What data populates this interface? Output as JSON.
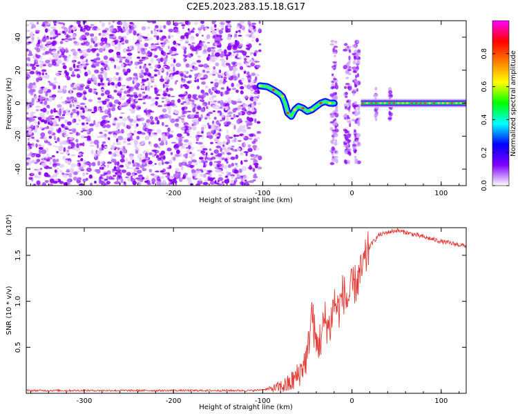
{
  "figure": {
    "title": "C2E5.2023.283.15.18.G17"
  },
  "chart_data": [
    {
      "type": "heatmap",
      "title": "C2E5.2023.283.15.18.G17",
      "xlabel": "Height of straight line (km)",
      "ylabel": "Frequency (Hz)",
      "xlim": [
        -365,
        128
      ],
      "ylim": [
        -50,
        50
      ],
      "x_ticks": [
        -300,
        -200,
        -100,
        0,
        100
      ],
      "y_ticks": [
        -40,
        -20,
        0,
        20,
        40
      ],
      "colorbar": {
        "label": "Normalized spectral amplitude",
        "range": [
          0,
          1
        ],
        "ticks": [
          0.0,
          0.2,
          0.4,
          0.6,
          0.8
        ],
        "tick_labels": [
          "0.0",
          "0.2",
          "0.4",
          "0.6",
          "0.8"
        ],
        "colormap": [
          "#ffffff",
          "#8000ff",
          "#0000ff",
          "#00ffff",
          "#00ff00",
          "#ffff00",
          "#ff8000",
          "#ff0000",
          "#ff00ff"
        ]
      },
      "regions": [
        {
          "name": "noise",
          "x": [
            -365,
            -103
          ],
          "freq": [
            -50,
            50
          ],
          "amplitude": 0.25
        },
        {
          "name": "signal-trace",
          "points": [
            [
              -103,
              10.5
            ],
            [
              -95,
              10
            ],
            [
              -88,
              8
            ],
            [
              -82,
              6
            ],
            [
              -78,
              4
            ],
            [
              -75,
              0
            ],
            [
              -72,
              -6
            ],
            [
              -68,
              -8
            ],
            [
              -64,
              -4
            ],
            [
              -60,
              -2
            ],
            [
              -55,
              -3
            ],
            [
              -50,
              -5
            ],
            [
              -45,
              -4
            ],
            [
              -40,
              -2
            ],
            [
              -35,
              0
            ],
            [
              -30,
              1
            ],
            [
              -25,
              0
            ],
            [
              -20,
              0
            ]
          ],
          "amplitude": 0.7
        },
        {
          "name": "carrier",
          "x": [
            10,
            128
          ],
          "freq": 0,
          "amplitude": 0.9
        },
        {
          "name": "spike-columns",
          "x": [
            -20,
            -5,
            5,
            27,
            43
          ],
          "amplitude": 0.3
        }
      ]
    },
    {
      "type": "line",
      "xlabel": "Height of straight line (km)",
      "ylabel": "SNR (10 * v/v)",
      "y_scale_label": "(x10⁴)",
      "xlim": [
        -365,
        128
      ],
      "ylim": [
        0,
        1.8
      ],
      "x_ticks": [
        -300,
        -200,
        -100,
        0,
        100
      ],
      "y_ticks": [
        0.5,
        1.0,
        1.5
      ],
      "y_tick_labels": [
        "0.5",
        "1.0",
        "1.5"
      ],
      "color": "#e53935",
      "series": [
        {
          "x": [
            -365,
            -300,
            -200,
            -110,
            -90,
            -80,
            -70,
            -60,
            -55,
            -50,
            -45,
            -40,
            -35,
            -30,
            -25,
            -20,
            -15,
            -10,
            -5,
            0,
            5,
            10,
            15,
            20,
            30,
            40,
            50,
            60,
            80,
            100,
            128
          ],
          "y": [
            0.03,
            0.03,
            0.03,
            0.03,
            0.05,
            0.07,
            0.1,
            0.2,
            0.3,
            0.4,
            0.9,
            0.5,
            0.6,
            0.8,
            0.7,
            1.0,
            0.9,
            1.1,
            1.0,
            1.15,
            1.2,
            1.3,
            1.45,
            1.6,
            1.72,
            1.75,
            1.77,
            1.75,
            1.7,
            1.65,
            1.6
          ]
        }
      ]
    }
  ]
}
